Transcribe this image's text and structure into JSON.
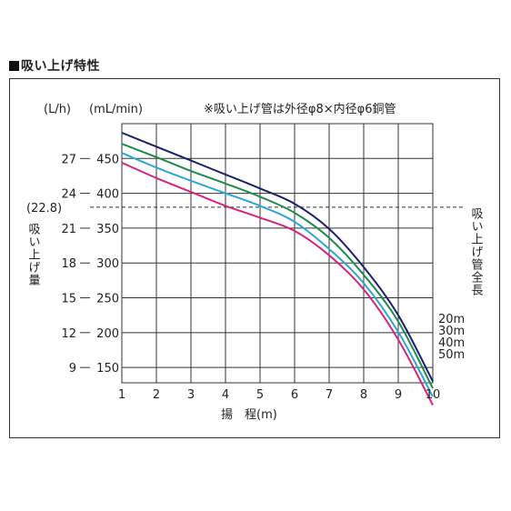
{
  "heading": "吸い上げ特性",
  "chart_data": {
    "type": "line",
    "note": "※吸い上げ管は外径φ8×内径φ6銅管",
    "unit_left": "(L/h)",
    "unit_right": "(mL/min)",
    "ylabel": "吸い上げ量",
    "right_label": "吸い上げ管全長",
    "xlabel": "揚　程(m)",
    "x_ticks": [
      1,
      2,
      3,
      4,
      5,
      6,
      7,
      8,
      9,
      10
    ],
    "y_ticks_mlmin": [
      150,
      200,
      250,
      300,
      350,
      400,
      450
    ],
    "y_ticks_lh": [
      9,
      12,
      15,
      18,
      21,
      24,
      27
    ],
    "xlim": [
      1,
      10
    ],
    "ylim": [
      128,
      500
    ],
    "grid": true,
    "reference_line": {
      "label": "(22.8)",
      "value": 380
    },
    "series": [
      {
        "name": "20m",
        "color": "#1a1f6e",
        "x": [
          1,
          2,
          3,
          4,
          5,
          6,
          7,
          8,
          9,
          10
        ],
        "y": [
          487,
          467,
          447,
          427,
          407,
          385,
          349,
          294,
          225,
          130
        ]
      },
      {
        "name": "30m",
        "color": "#1f8a4a",
        "x": [
          1,
          2,
          3,
          4,
          5,
          6,
          7,
          8,
          9,
          10
        ],
        "y": [
          471,
          452,
          432,
          414,
          395,
          372,
          336,
          283,
          216,
          120
        ]
      },
      {
        "name": "40m",
        "color": "#2ba6d9",
        "x": [
          1,
          2,
          3,
          4,
          5,
          6,
          7,
          8,
          9,
          10
        ],
        "y": [
          458,
          437,
          418,
          400,
          382,
          359,
          320,
          271,
          201,
          108
        ]
      },
      {
        "name": "50m",
        "color": "#d6237c",
        "x": [
          1,
          2,
          3,
          4,
          5,
          6,
          7,
          8,
          9,
          10
        ],
        "y": [
          444,
          422,
          402,
          382,
          365,
          346,
          311,
          262,
          190,
          96
        ]
      }
    ]
  }
}
